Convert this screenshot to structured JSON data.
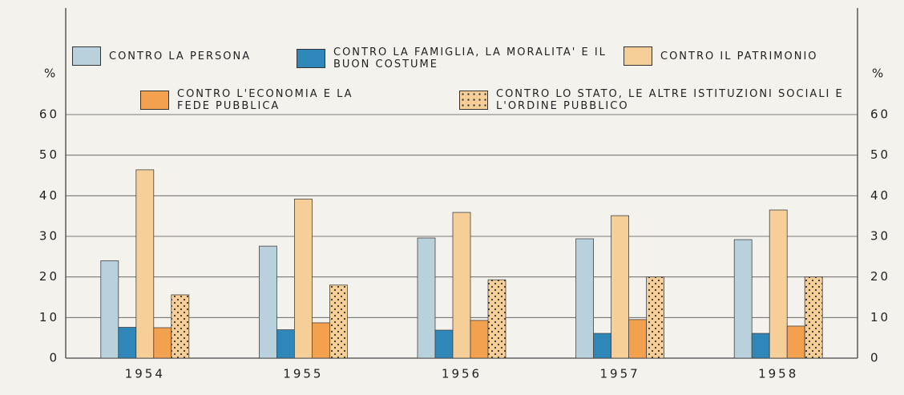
{
  "chart_data": {
    "type": "bar",
    "y_label": "%",
    "y2_label": "%",
    "categories": [
      "1954",
      "1955",
      "1956",
      "1957",
      "1958"
    ],
    "series": [
      {
        "name": "CONTRO LA PERSONA",
        "color": "#b9d1dd",
        "values": [
          24,
          27.6,
          29.6,
          29.4,
          29.2
        ]
      },
      {
        "name": "CONTRO LA FAMIGLIA, LA MORALITA' E IL BUON COSTUME",
        "color": "#2f86b8",
        "values": [
          7.6,
          7,
          6.9,
          6.1,
          6.1
        ]
      },
      {
        "name": "CONTRO IL PATRIMONIO",
        "color": "#f6cf98",
        "values": [
          46.4,
          39.2,
          35.9,
          35.1,
          36.5
        ]
      },
      {
        "name": "CONTRO L'ECONOMIA E LA FEDE PUBBLICA",
        "color": "#f3a04f",
        "values": [
          7.5,
          8.7,
          9.3,
          9.5,
          7.9
        ]
      },
      {
        "name": "CONTRO LO STATO, LE ALTRE ISTITUZIONI SOCIALI E L'ORDINE PUBBLICO",
        "color": "#f6cf98",
        "pattern": "dots",
        "values": [
          15.6,
          18,
          19.3,
          20,
          20
        ]
      }
    ],
    "ylim": [
      0,
      60
    ],
    "yticks": [
      0,
      10,
      20,
      30,
      40,
      50,
      60
    ],
    "y2lim": [
      0,
      60
    ],
    "y2ticks": [
      0,
      10,
      20,
      30,
      40,
      50,
      60
    ],
    "grid": true
  }
}
